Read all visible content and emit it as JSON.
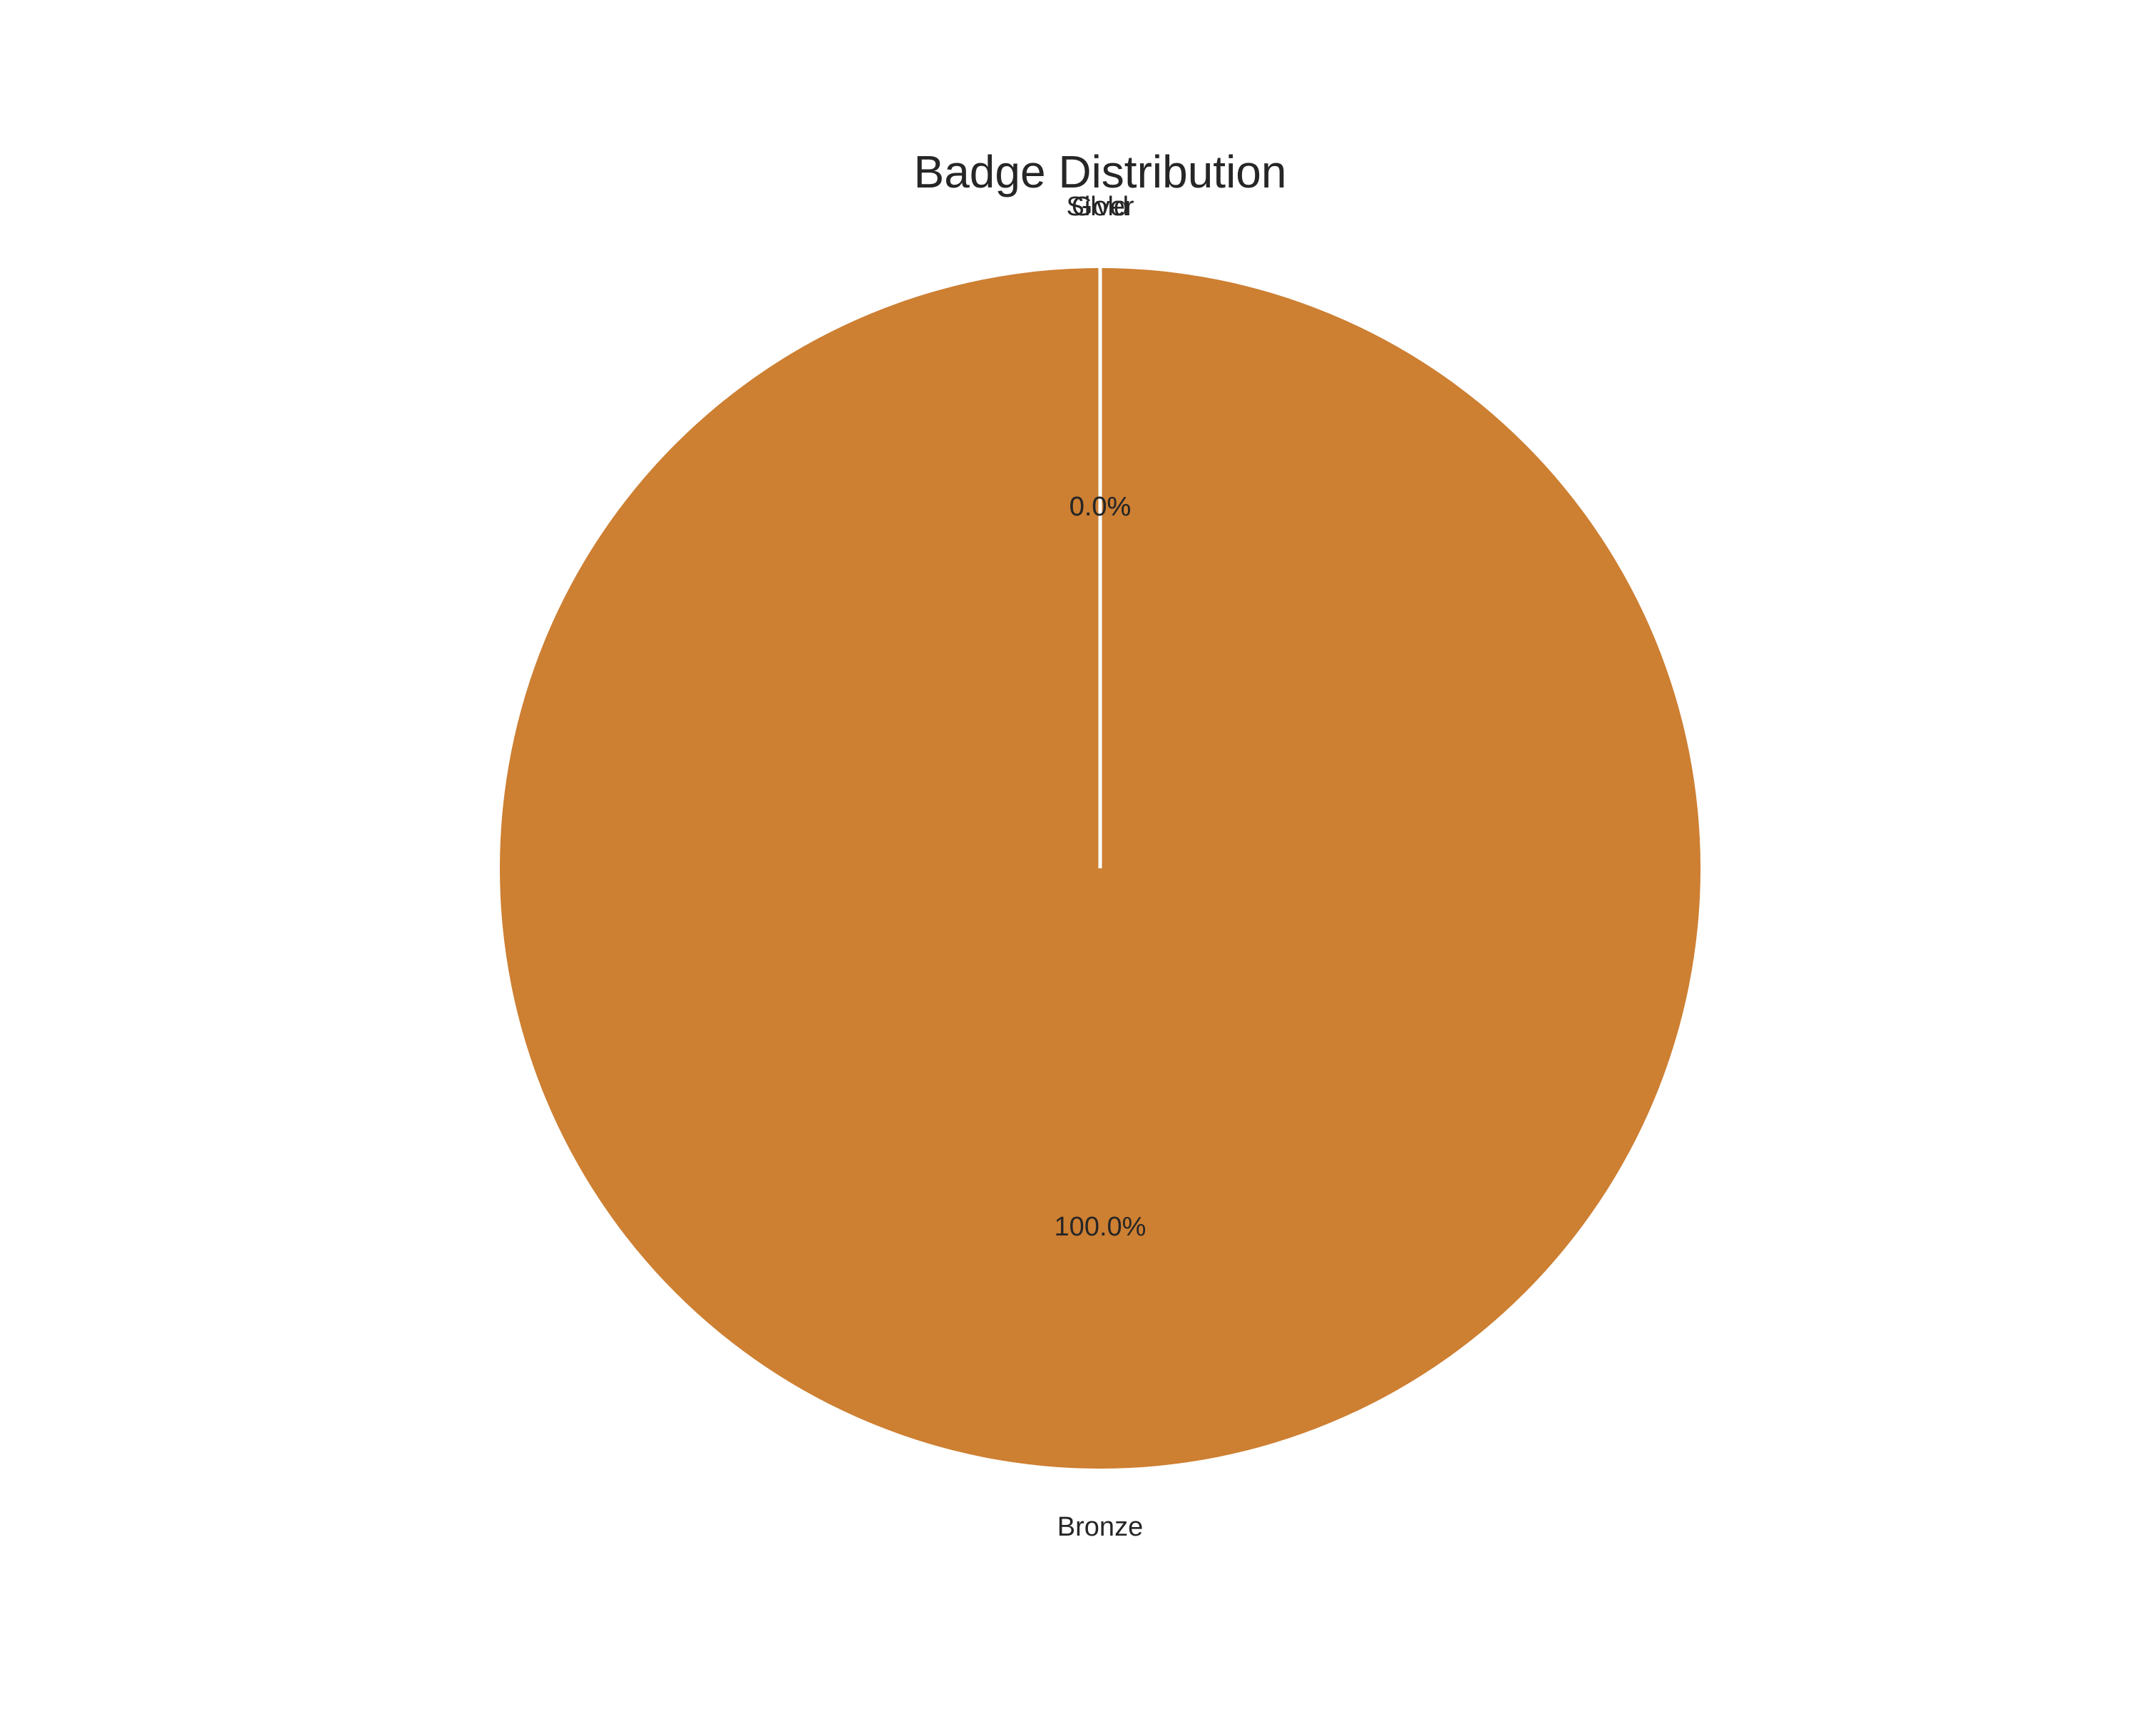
{
  "chart_data": {
    "type": "pie",
    "title": "Badge Distribution",
    "start_angle": "top",
    "direction": "counterclockwise",
    "slices": [
      {
        "label": "Gold",
        "value": 0.0,
        "percent_label": "0.0%",
        "color": "#ffd700"
      },
      {
        "label": "Silver",
        "value": 0.0,
        "percent_label": "0.0%",
        "color": "#c0c0c0"
      },
      {
        "label": "Bronze",
        "value": 100.0,
        "percent_label": "100.0%",
        "color": "#cd7f32"
      }
    ],
    "edge_color": "#ffffff"
  }
}
